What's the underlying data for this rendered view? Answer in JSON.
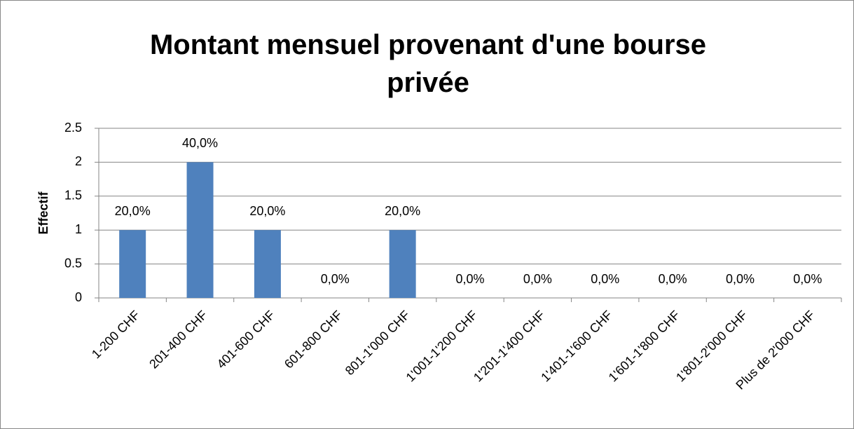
{
  "chart_data": {
    "type": "bar",
    "title": "Montant mensuel provenant d'une bourse privée",
    "y_label": "Effectif",
    "categories": [
      "1-200 CHF",
      "201-400 CHF",
      "401-600 CHF",
      "601-800 CHF",
      "801-1'000 CHF",
      "1'001-1'200 CHF",
      "1'201-1'400 CHF",
      "1'401-1'600 CHF",
      "1'601-1'800 CHF",
      "1'801-2'000 CHF",
      "Plus de 2'000 CHF"
    ],
    "values": [
      1,
      2,
      1,
      0,
      1,
      0,
      0,
      0,
      0,
      0,
      0
    ],
    "percentages": [
      20,
      40,
      20,
      0,
      20,
      0,
      0,
      0,
      0,
      0,
      0
    ],
    "percentage_labels": [
      "20,0%",
      "40,0%",
      "20,0%",
      "0,0%",
      "20,0%",
      "0,0%",
      "0,0%",
      "0,0%",
      "0,0%",
      "0,0%",
      "0,0%"
    ],
    "color": "#4f81bd",
    "ylim": [
      0,
      2.5
    ],
    "yticks": [
      0,
      0.5,
      1,
      1.5,
      2,
      2.5
    ],
    "grid": true
  }
}
